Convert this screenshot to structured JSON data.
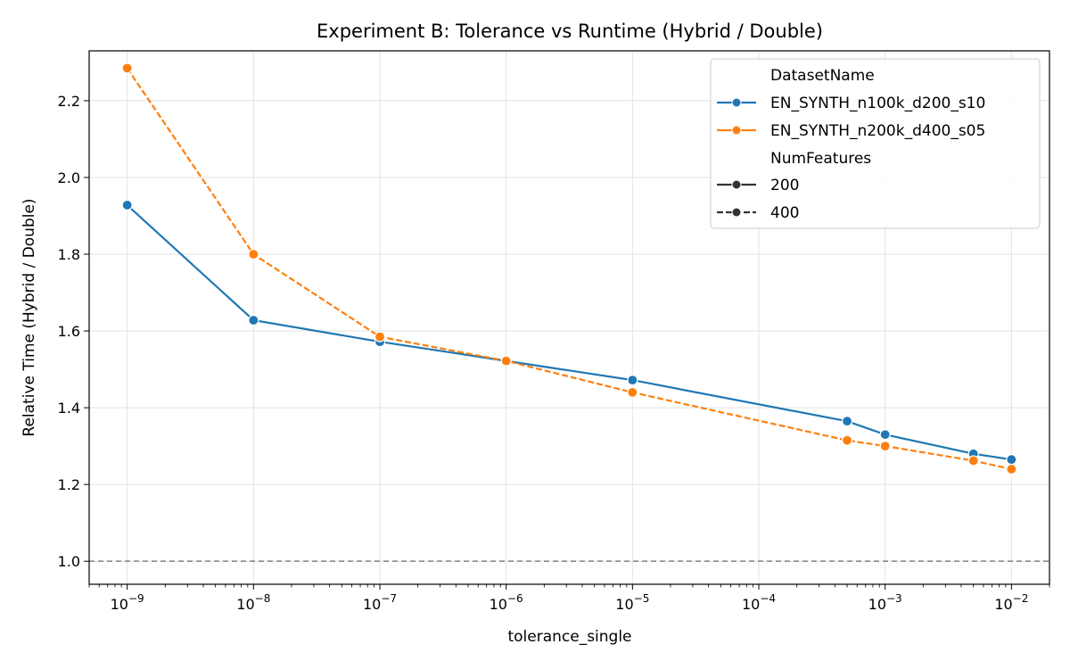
{
  "chart_data": {
    "type": "line",
    "title": "Experiment B: Tolerance vs Runtime (Hybrid / Double)",
    "xlabel": "tolerance_single",
    "ylabel": "Relative Time (Hybrid / Double)",
    "xscale": "log",
    "xlim": [
      5e-10,
      0.02
    ],
    "ylim": [
      0.94,
      2.33
    ],
    "x_ticks": [
      {
        "value": 1e-09,
        "base": "10",
        "exp": "−9"
      },
      {
        "value": 1e-08,
        "base": "10",
        "exp": "−8"
      },
      {
        "value": 1e-07,
        "base": "10",
        "exp": "−7"
      },
      {
        "value": 1e-06,
        "base": "10",
        "exp": "−6"
      },
      {
        "value": 1e-05,
        "base": "10",
        "exp": "−5"
      },
      {
        "value": 0.0001,
        "base": "10",
        "exp": "−4"
      },
      {
        "value": 0.001,
        "base": "10",
        "exp": "−3"
      },
      {
        "value": 0.01,
        "base": "10",
        "exp": "−2"
      }
    ],
    "y_ticks": [
      "1.0",
      "1.2",
      "1.4",
      "1.6",
      "1.8",
      "2.0",
      "2.2"
    ],
    "grid": true,
    "reference_line": {
      "y": 1.0,
      "style": "dashed",
      "color": "#808080"
    },
    "legend": {
      "placement": "top-right",
      "hue_title": "DatasetName",
      "style_title": "NumFeatures",
      "style_entries": [
        "200",
        "400"
      ]
    },
    "series": [
      {
        "name": "EN_SYNTH_n100k_d200_s10",
        "num_features": "200",
        "color": "#1f77b4",
        "dash": "solid",
        "x": [
          1e-09,
          1e-08,
          1e-07,
          1e-06,
          1e-05,
          0.0005,
          0.001,
          0.005,
          0.01
        ],
        "y": [
          1.928,
          1.628,
          1.572,
          1.522,
          1.472,
          1.365,
          1.33,
          1.28,
          1.265
        ]
      },
      {
        "name": "EN_SYNTH_n200k_d400_s05",
        "num_features": "400",
        "color": "#ff7f0e",
        "dash": "dashed",
        "x": [
          1e-09,
          1e-08,
          1e-07,
          1e-06,
          1e-05,
          0.0005,
          0.001,
          0.005,
          0.01
        ],
        "y": [
          2.285,
          1.8,
          1.585,
          1.522,
          1.44,
          1.315,
          1.3,
          1.262,
          1.24
        ]
      }
    ]
  }
}
